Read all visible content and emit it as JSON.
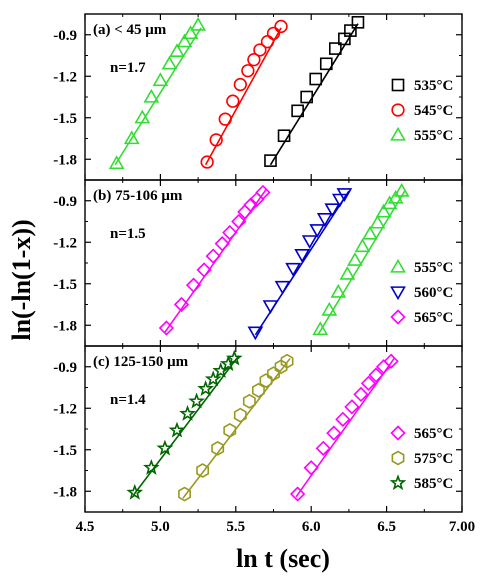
{
  "chart_data": {
    "type": "scatter",
    "xlabel": "ln t (sec)",
    "ylabel": "ln(-ln(1-x))",
    "xlim": [
      4.5,
      7.0
    ],
    "ylim": [
      -1.95,
      -0.75
    ],
    "x_ticks": [
      "4.5",
      "5.0",
      "5.5",
      "6.0",
      "6.5",
      "7.00"
    ],
    "y_ticks": [
      "-0.9",
      "-1.2",
      "-1.5",
      "-1.8"
    ],
    "panels": [
      {
        "label": "(a) < 45 μm",
        "n_label": "n=1.7",
        "series": [
          {
            "name": "535°C",
            "marker": "square",
            "color": "#000000",
            "x": [
              5.73,
              5.82,
              5.91,
              5.97,
              6.03,
              6.1,
              6.16,
              6.22,
              6.26,
              6.31
            ],
            "y": [
              -1.81,
              -1.63,
              -1.45,
              -1.35,
              -1.22,
              -1.11,
              -1.0,
              -0.93,
              -0.87,
              -0.81
            ],
            "fit": [
              [
                5.73,
                -1.84
              ],
              [
                6.31,
                -0.82
              ]
            ]
          },
          {
            "name": "545°C",
            "marker": "circle",
            "color": "#ff0000",
            "x": [
              5.31,
              5.37,
              5.43,
              5.48,
              5.53,
              5.58,
              5.62,
              5.66,
              5.71,
              5.75,
              5.8
            ],
            "y": [
              -1.82,
              -1.66,
              -1.51,
              -1.38,
              -1.26,
              -1.16,
              -1.08,
              -1.01,
              -0.95,
              -0.89,
              -0.84
            ],
            "fit": [
              [
                5.3,
                -1.84
              ],
              [
                5.8,
                -0.85
              ]
            ]
          },
          {
            "name": "555°C",
            "marker": "triangle-up",
            "color": "#33dd33",
            "x": [
              4.71,
              4.81,
              4.88,
              4.94,
              5.0,
              5.06,
              5.11,
              5.16,
              5.2,
              5.25
            ],
            "y": [
              -1.83,
              -1.65,
              -1.5,
              -1.35,
              -1.23,
              -1.11,
              -1.02,
              -0.95,
              -0.89,
              -0.83
            ],
            "fit": [
              [
                4.7,
                -1.84
              ],
              [
                5.27,
                -0.85
              ]
            ]
          }
        ]
      },
      {
        "label": "(b) 75-106 μm",
        "n_label": "n=1.5",
        "series": [
          {
            "name": "555°C",
            "marker": "triangle-up",
            "color": "#33dd33",
            "x": [
              6.06,
              6.12,
              6.18,
              6.24,
              6.29,
              6.34,
              6.39,
              6.44,
              6.48,
              6.52,
              6.56,
              6.6
            ],
            "y": [
              -1.83,
              -1.69,
              -1.56,
              -1.43,
              -1.33,
              -1.23,
              -1.14,
              -1.06,
              -0.98,
              -0.92,
              -0.88,
              -0.83
            ],
            "fit": [
              [
                6.05,
                -1.86
              ],
              [
                6.62,
                -0.83
              ]
            ]
          },
          {
            "name": "560°C",
            "marker": "triangle-down",
            "color": "#0000cc",
            "x": [
              5.63,
              5.73,
              5.81,
              5.88,
              5.94,
              5.99,
              6.04,
              6.09,
              6.14,
              6.19,
              6.22
            ],
            "y": [
              -1.85,
              -1.66,
              -1.52,
              -1.39,
              -1.29,
              -1.19,
              -1.11,
              -1.03,
              -0.96,
              -0.89,
              -0.85
            ],
            "fit": [
              [
                5.63,
                -1.87
              ],
              [
                6.25,
                -0.83
              ]
            ]
          },
          {
            "name": "565°C",
            "marker": "diamond",
            "color": "#ff00ff",
            "x": [
              5.04,
              5.14,
              5.22,
              5.29,
              5.35,
              5.41,
              5.46,
              5.52,
              5.56,
              5.6,
              5.64,
              5.68
            ],
            "y": [
              -1.82,
              -1.65,
              -1.51,
              -1.4,
              -1.3,
              -1.21,
              -1.13,
              -1.05,
              -0.98,
              -0.93,
              -0.89,
              -0.84
            ],
            "fit": [
              [
                5.03,
                -1.85
              ],
              [
                5.7,
                -0.82
              ]
            ]
          }
        ]
      },
      {
        "label": "(c) 125-150 μm",
        "n_label": "n=1.4",
        "series": [
          {
            "name": "565°C",
            "marker": "diamond",
            "color": "#ff00ff",
            "x": [
              5.91,
              6.0,
              6.08,
              6.15,
              6.21,
              6.27,
              6.33,
              6.38,
              6.43,
              6.48,
              6.53
            ],
            "y": [
              -1.82,
              -1.63,
              -1.49,
              -1.38,
              -1.28,
              -1.19,
              -1.1,
              -1.02,
              -0.96,
              -0.9,
              -0.86
            ],
            "fit": [
              [
                5.9,
                -1.84
              ],
              [
                6.55,
                -0.84
              ]
            ]
          },
          {
            "name": "575°C",
            "marker": "hexagon",
            "color": "#999922",
            "x": [
              5.16,
              5.28,
              5.38,
              5.46,
              5.53,
              5.59,
              5.65,
              5.7,
              5.75,
              5.8,
              5.84
            ],
            "y": [
              -1.82,
              -1.65,
              -1.49,
              -1.36,
              -1.25,
              -1.15,
              -1.07,
              -1.0,
              -0.95,
              -0.9,
              -0.86
            ],
            "fit": [
              [
                5.15,
                -1.85
              ],
              [
                5.86,
                -0.84
              ]
            ]
          },
          {
            "name": "585°C",
            "marker": "star",
            "color": "#006600",
            "x": [
              4.83,
              4.94,
              5.03,
              5.11,
              5.18,
              5.24,
              5.3,
              5.35,
              5.4,
              5.45,
              5.49
            ],
            "y": [
              -1.81,
              -1.63,
              -1.49,
              -1.36,
              -1.24,
              -1.15,
              -1.06,
              -0.99,
              -0.93,
              -0.88,
              -0.84
            ],
            "fit": [
              [
                4.82,
                -1.83
              ],
              [
                5.52,
                -0.82
              ]
            ]
          }
        ]
      }
    ]
  }
}
